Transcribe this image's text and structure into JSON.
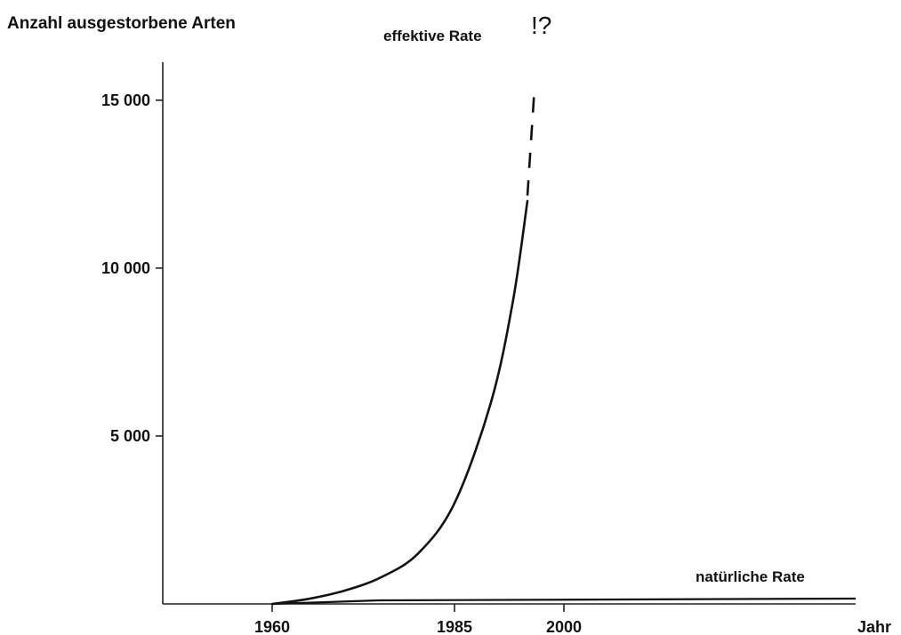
{
  "chart_data": {
    "type": "line",
    "title": "",
    "ylabel": "Anzahl ausgestorbene Arten",
    "xlabel": "Jahr",
    "x_ticks": [
      {
        "value": 1960,
        "label": "1960"
      },
      {
        "value": 1985,
        "label": "1985"
      },
      {
        "value": 2000,
        "label": "2000"
      }
    ],
    "y_ticks": [
      {
        "value": 5000,
        "label": "5 000"
      },
      {
        "value": 10000,
        "label": "10 000"
      },
      {
        "value": 15000,
        "label": "15 000"
      }
    ],
    "xlim": [
      1945,
      2040
    ],
    "ylim": [
      0,
      16000
    ],
    "series": [
      {
        "name": "effektive Rate",
        "x": [
          1960,
          1965,
          1970,
          1975,
          1980,
          1985,
          1990,
          1993,
          1995
        ],
        "y": [
          0,
          150,
          400,
          800,
          1500,
          3000,
          6000,
          9000,
          12000
        ],
        "extension": {
          "style": "dashed",
          "x": [
            1995,
            1996
          ],
          "y": [
            12000,
            15300
          ],
          "annotation": "!?"
        }
      },
      {
        "name": "natürliche Rate",
        "x": [
          1960,
          2040
        ],
        "y": [
          0,
          0
        ]
      }
    ]
  }
}
